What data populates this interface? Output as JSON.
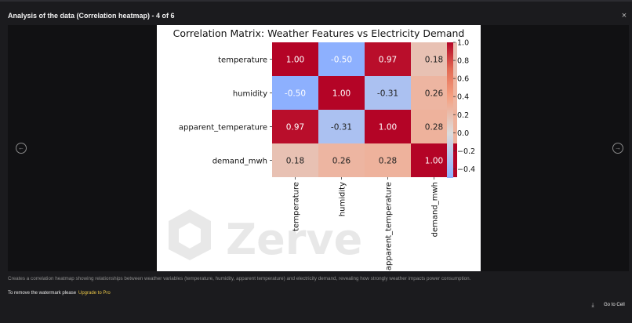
{
  "dialog": {
    "title": "Analysis of the data (Correlation heatmap) - 4 of 6",
    "close_glyph": "×",
    "prev_glyph": "←",
    "next_glyph": "→",
    "caption": "Creates a correlation heatmap showing relationships between weather variables (temperature, humidity, apparent temperature) and electricity demand, revealing how strongly weather impacts power consumption.",
    "watermark_note": "To remove the watermark please",
    "upgrade_label": "Upgrade to Pro",
    "download_glyph": "⤓",
    "goto_label": "Go to Cell",
    "watermark_text": "Zerve"
  },
  "icons": {
    "close": "close-icon",
    "prev": "arrow-left-circle-icon",
    "next": "arrow-right-circle-icon",
    "download": "download-icon",
    "watermark_logo": "zerve-logo-icon"
  },
  "chart_data": {
    "type": "heatmap",
    "title": "Correlation Matrix: Weather Features vs Electricity Demand",
    "rows": [
      "temperature",
      "humidity",
      "apparent_temperature",
      "demand_mwh"
    ],
    "cols": [
      "temperature",
      "humidity",
      "apparent_temperature",
      "demand_mwh"
    ],
    "values": [
      [
        1.0,
        -0.5,
        0.97,
        0.18
      ],
      [
        -0.5,
        1.0,
        -0.31,
        0.26
      ],
      [
        0.97,
        -0.31,
        1.0,
        0.28
      ],
      [
        0.18,
        0.26,
        0.28,
        1.0
      ]
    ],
    "colorbar": {
      "colormap": "coolwarm",
      "range": [
        -0.5,
        1.0
      ],
      "ticks": [
        1.0,
        0.8,
        0.6,
        0.4,
        0.2,
        0.0,
        -0.2,
        -0.4
      ],
      "tick_labels": [
        "1.0",
        "0.8",
        "0.6",
        "0.4",
        "0.2",
        "0.0",
        "−0.2",
        "−0.4"
      ]
    },
    "annotation_format": "0.00"
  }
}
